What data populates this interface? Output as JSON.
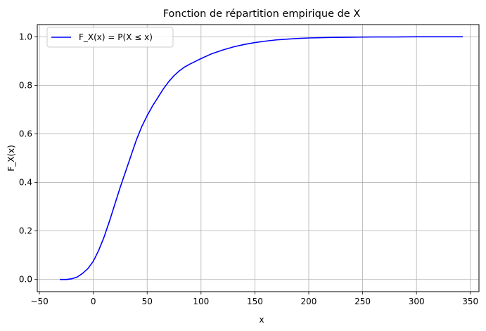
{
  "chart_data": {
    "type": "line",
    "title": "Fonction de répartition empirique de X",
    "xlabel": "x",
    "ylabel": "F_X(x)",
    "xlim": [
      -52,
      358
    ],
    "ylim": [
      -0.05,
      1.05
    ],
    "xticks": [
      -50,
      0,
      50,
      100,
      150,
      200,
      250,
      300,
      350
    ],
    "xtick_labels": [
      "−50",
      "0",
      "50",
      "100",
      "150",
      "200",
      "250",
      "300",
      "350"
    ],
    "yticks": [
      0.0,
      0.2,
      0.4,
      0.6,
      0.8,
      1.0
    ],
    "ytick_labels": [
      "0.0",
      "0.2",
      "0.4",
      "0.6",
      "0.8",
      "1.0"
    ],
    "grid": true,
    "legend_position": "top-left",
    "series": [
      {
        "name": "F_X(x) = P(X ≤ x)",
        "color": "#0000ff",
        "x": [
          -31,
          -25,
          -20,
          -15,
          -10,
          -5,
          0,
          5,
          10,
          15,
          20,
          25,
          30,
          35,
          40,
          45,
          50,
          55,
          60,
          65,
          70,
          75,
          80,
          85,
          90,
          95,
          100,
          110,
          120,
          130,
          140,
          150,
          160,
          170,
          180,
          190,
          200,
          220,
          240,
          260,
          280,
          300,
          320,
          343
        ],
        "y": [
          0.0,
          0.0,
          0.003,
          0.01,
          0.025,
          0.045,
          0.075,
          0.12,
          0.175,
          0.24,
          0.31,
          0.38,
          0.445,
          0.51,
          0.575,
          0.63,
          0.675,
          0.715,
          0.75,
          0.785,
          0.815,
          0.84,
          0.86,
          0.876,
          0.888,
          0.899,
          0.91,
          0.93,
          0.945,
          0.958,
          0.968,
          0.976,
          0.982,
          0.987,
          0.99,
          0.993,
          0.995,
          0.997,
          0.998,
          0.999,
          0.999,
          1.0,
          1.0,
          1.0
        ]
      }
    ]
  }
}
